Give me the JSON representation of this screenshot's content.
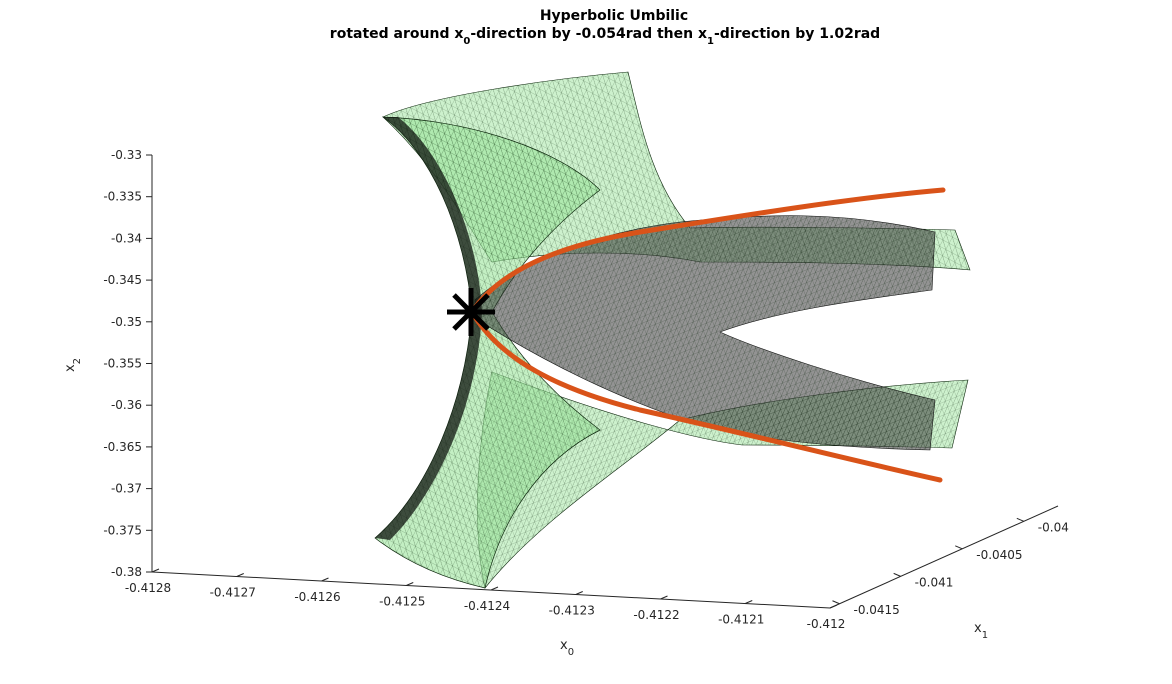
{
  "chart_data": {
    "type": "surface3d",
    "title": "Hyperbolic Umbilic",
    "subtitle": {
      "pre": "rotated around x",
      "sub1": "0",
      "mid": "-direction by -0.054rad then x",
      "sub2": "1",
      "post": "-direction by 1.02rad"
    },
    "xlabel": {
      "base": "x",
      "sub": "0"
    },
    "ylabel": {
      "base": "x",
      "sub": "1"
    },
    "zlabel": {
      "base": "x",
      "sub": "2"
    },
    "x_ticks": [
      "-0.4128",
      "-0.4127",
      "-0.4126",
      "-0.4125",
      "-0.4124",
      "-0.4123",
      "-0.4122",
      "-0.4121",
      "-0.412"
    ],
    "y_ticks": [
      "-0.0415",
      "-0.041",
      "-0.0405",
      "-0.04"
    ],
    "z_ticks": [
      "-0.33",
      "-0.335",
      "-0.34",
      "-0.345",
      "-0.35",
      "-0.355",
      "-0.36",
      "-0.365",
      "-0.37",
      "-0.375",
      "-0.38"
    ],
    "xlim": [
      -0.4128,
      -0.412
    ],
    "ylim": [
      -0.0415,
      -0.04
    ],
    "zlim": [
      -0.38,
      -0.33
    ],
    "umbilic_point_z": -0.3485,
    "colors": {
      "surface_edge": "#000000",
      "surface_fill": "#9be49b",
      "dark_fold_fill": "#3a3a3a",
      "curve": "#d95319",
      "marker": "#000000",
      "axis": "#262626"
    }
  }
}
